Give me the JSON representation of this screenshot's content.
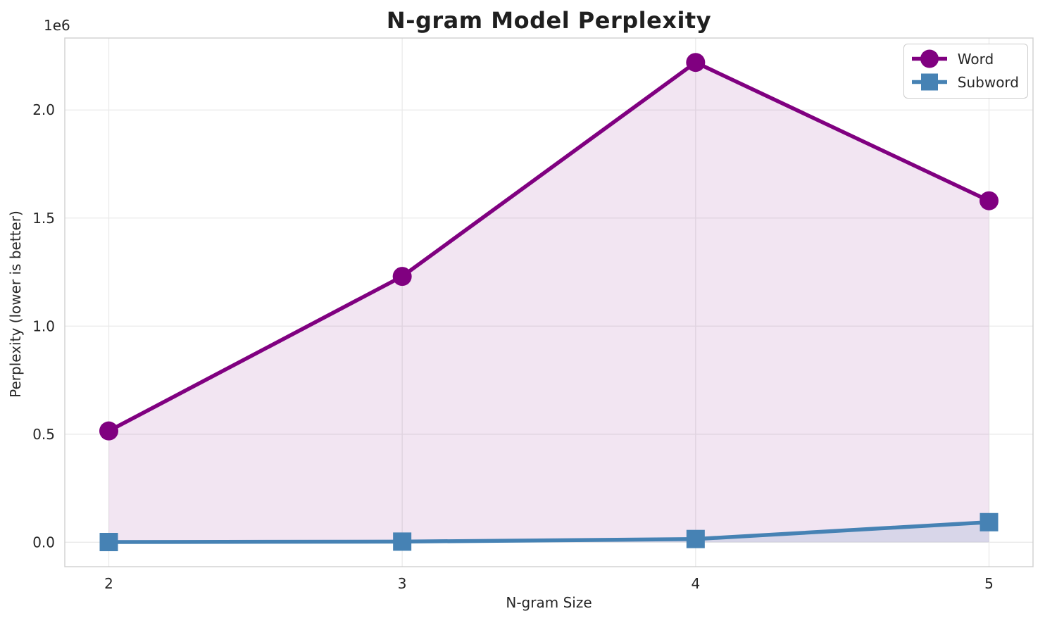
{
  "chart_data": {
    "type": "line",
    "title": "N-gram Model Perplexity",
    "xlabel": "N-gram Size",
    "ylabel": "Perplexity (lower is better)",
    "y_offset_text": "1e6",
    "x": [
      2,
      3,
      4,
      5
    ],
    "series": [
      {
        "name": "Word",
        "color": "#800080",
        "marker": "circle",
        "fill_alpha": 0.1,
        "values": [
          515000,
          1230000,
          2220000,
          1580000
        ]
      },
      {
        "name": "Subword",
        "color": "#4682B4",
        "marker": "square",
        "fill_alpha": 0.15,
        "values": [
          1000,
          3000,
          15000,
          93000
        ]
      }
    ],
    "xticks": {
      "values": [
        2,
        3,
        4,
        5
      ],
      "labels": [
        "2",
        "3",
        "4",
        "5"
      ]
    },
    "yticks": {
      "values": [
        0,
        500000,
        1000000,
        1500000,
        2000000
      ],
      "labels": [
        "0.0",
        "0.5",
        "1.0",
        "1.5",
        "2.0"
      ]
    },
    "xlim": [
      1.85,
      5.15
    ],
    "ylim": [
      -113000,
      2333000
    ],
    "grid": true,
    "legend_position": "upper right",
    "fill_baseline": 0
  }
}
